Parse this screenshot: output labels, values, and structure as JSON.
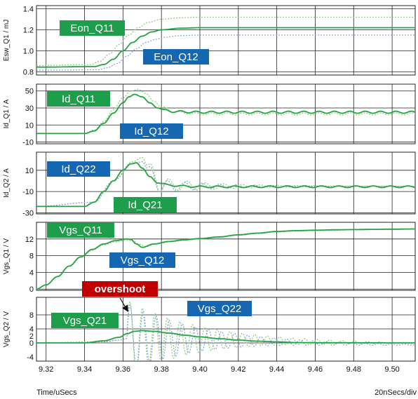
{
  "chart_data": {
    "type": "line",
    "xlabel": "Time/uSecs",
    "x_div_label": "20nSecs/div",
    "xlim": [
      9.315,
      9.512
    ],
    "x_ticks": [
      9.32,
      9.34,
      9.36,
      9.38,
      9.4,
      9.42,
      9.44,
      9.46,
      9.48,
      9.5
    ],
    "x_tick_labels": [
      "9.32",
      "9.34",
      "9.36",
      "9.38",
      "9.40",
      "9.42",
      "9.44",
      "9.46",
      "9.48",
      "9.50"
    ],
    "colors": {
      "q_solid": "#27a243",
      "q_dotted": "#8ecf7e",
      "q_blue": "#8aa6d8",
      "label_green": "#1e9e4a",
      "label_blue": "#1667b1",
      "label_red": "#c00000"
    },
    "panels": [
      {
        "ylabel": "Esw_Q1 / mJ",
        "ylim": [
          0.77,
          1.43
        ],
        "y_ticks": [
          0.8,
          1.0,
          1.2,
          1.4
        ],
        "y_tick_labels": [
          "0.8",
          "1.0",
          "1.2",
          "1.4"
        ],
        "series": [
          {
            "name": "Eon_Q11",
            "style": "solid",
            "color": "#27a243",
            "x": [
              9.315,
              9.345,
              9.35,
              9.355,
              9.36,
              9.365,
              9.37,
              9.375,
              9.38,
              9.39,
              9.4,
              9.512
            ],
            "y": [
              0.845,
              0.85,
              0.87,
              0.92,
              1.0,
              1.08,
              1.14,
              1.18,
              1.2,
              1.215,
              1.22,
              1.22
            ]
          },
          {
            "name": "",
            "style": "dotted",
            "color": "#8ecf7e",
            "x": [
              9.315,
              9.343,
              9.348,
              9.353,
              9.358,
              9.363,
              9.368,
              9.373,
              9.38,
              9.39,
              9.4,
              9.512
            ],
            "y": [
              0.86,
              0.87,
              0.9,
              0.97,
              1.06,
              1.15,
              1.22,
              1.27,
              1.3,
              1.315,
              1.32,
              1.32
            ]
          },
          {
            "name": "Eon_Q12",
            "style": "dotted",
            "color": "#8aa6d8",
            "x": [
              9.315,
              9.347,
              9.352,
              9.357,
              9.362,
              9.367,
              9.372,
              9.377,
              9.382,
              9.39,
              9.4,
              9.512
            ],
            "y": [
              0.815,
              0.82,
              0.84,
              0.88,
              0.95,
              1.02,
              1.08,
              1.11,
              1.13,
              1.145,
              1.15,
              1.15
            ]
          }
        ],
        "labels": [
          {
            "text": "Eon_Q11",
            "kind": "green"
          },
          {
            "text": "Eon_Q12",
            "kind": "blue"
          }
        ]
      },
      {
        "ylabel": "Id_Q1 / A",
        "ylim": [
          -12,
          58
        ],
        "y_ticks": [
          -10,
          10,
          30,
          50
        ],
        "y_tick_labels": [
          "-10",
          "10",
          "30",
          "50"
        ],
        "series": [
          {
            "name": "Id_Q11",
            "style": "solid",
            "color": "#27a243",
            "x": [
              9.315,
              9.34,
              9.345,
              9.35,
              9.355,
              9.36,
              9.363,
              9.366,
              9.37,
              9.374,
              9.378,
              9.382,
              9.386,
              9.392,
              9.4,
              9.512
            ],
            "y": [
              0,
              0,
              3,
              12,
              24,
              36,
              43,
              46,
              43,
              36,
              30,
              27,
              26,
              25.5,
              25,
              25
            ],
            "ripple_after": 9.38,
            "ripple_amp": 1.2,
            "ripple_period": 0.008
          },
          {
            "name": "Id_Q12",
            "style": "dotted",
            "color": "#8ecf7e",
            "x": [
              9.315,
              9.34,
              9.345,
              9.35,
              9.355,
              9.36,
              9.364,
              9.368,
              9.372,
              9.376,
              9.38,
              9.386,
              9.392,
              9.4,
              9.512
            ],
            "y": [
              0,
              0,
              4,
              14,
              28,
              42,
              50,
              52,
              47,
              38,
              31,
              26,
              24,
              23,
              23
            ],
            "ripple_after": 9.38,
            "ripple_amp": 1.2,
            "ripple_period": 0.008
          }
        ],
        "labels": [
          {
            "text": "Id_Q11",
            "kind": "green"
          },
          {
            "text": "Id_Q12",
            "kind": "blue"
          }
        ]
      },
      {
        "ylabel": "Id_Q2 / A",
        "ylim": [
          -31,
          27
        ],
        "y_ticks": [
          -30,
          -10,
          10
        ],
        "y_tick_labels": [
          "-30",
          "-10",
          "10"
        ],
        "series": [
          {
            "name": "Id_Q21",
            "style": "solid",
            "color": "#27a243",
            "x": [
              9.315,
              9.34,
              9.345,
              9.35,
              9.355,
              9.36,
              9.364,
              9.367,
              9.37,
              9.374,
              9.378,
              9.384,
              9.392,
              9.4,
              9.512
            ],
            "y": [
              -24,
              -24,
              -20,
              -10,
              0,
              10,
              16,
              17,
              12,
              4,
              -2,
              -4,
              -5,
              -5.5,
              -5.5
            ],
            "ripple_after": 9.38,
            "ripple_amp": 0.8,
            "ripple_period": 0.009
          },
          {
            "name": "",
            "style": "dotted",
            "color": "#8ecf7e",
            "x": [
              9.315,
              9.345,
              9.355,
              9.365,
              9.37,
              9.374,
              9.38,
              9.4,
              9.512
            ],
            "y": [
              -24,
              -20,
              0,
              18,
              22,
              8,
              -4,
              -5,
              -5
            ],
            "osc_after": 9.372,
            "osc_amp": 9,
            "osc_decay": 0.03,
            "osc_period": 0.0095
          },
          {
            "name": "Id_Q22",
            "style": "dotted",
            "color": "#8aa6d8",
            "x": [
              9.315,
              9.345,
              9.355,
              9.365,
              9.37,
              9.374,
              9.38,
              9.4,
              9.512
            ],
            "y": [
              -24,
              -20,
              0,
              16,
              18,
              6,
              -5,
              -5,
              -5
            ],
            "osc_after": 9.372,
            "osc_amp": 8,
            "osc_decay": 0.028,
            "osc_period": 0.009
          }
        ],
        "labels": [
          {
            "text": "Id_Q22",
            "kind": "blue"
          },
          {
            "text": "Id_Q21",
            "kind": "green"
          }
        ]
      },
      {
        "ylabel": "Vgs_Q1 / V",
        "ylim": [
          -0.3,
          16
        ],
        "y_ticks": [
          0,
          4,
          8,
          12
        ],
        "y_tick_labels": [
          "0",
          "4",
          "8",
          "12"
        ],
        "series": [
          {
            "name": "Vgs_Q11",
            "style": "solid",
            "color": "#27a243",
            "x": [
              9.315,
              9.32,
              9.326,
              9.332,
              9.338,
              9.344,
              9.35,
              9.356,
              9.362,
              9.364,
              9.367,
              9.37,
              9.376,
              9.384,
              9.392,
              9.4,
              9.41,
              9.42,
              9.43,
              9.44,
              9.45,
              9.46,
              9.47,
              9.48,
              9.49,
              9.5,
              9.512
            ],
            "y": [
              0,
              1,
              3,
              5.5,
              7.7,
              9.5,
              10.8,
              11.6,
              12,
              11.9,
              10.8,
              10,
              10.8,
              11.4,
              11.8,
              12.1,
              12.5,
              13,
              13.4,
              13.8,
              14,
              14.1,
              14.2,
              14.25,
              14.3,
              14.35,
              14.4
            ]
          },
          {
            "name": "Vgs_Q12",
            "style": "dotted",
            "color": "#8ecf7e",
            "x": [
              9.315,
              9.32,
              9.326,
              9.332,
              9.338,
              9.344,
              9.35,
              9.356,
              9.362,
              9.365,
              9.368,
              9.372,
              9.378,
              9.386,
              9.394,
              9.4,
              9.41,
              9.42,
              9.43,
              9.44,
              9.45,
              9.46,
              9.47,
              9.48,
              9.49,
              9.5,
              9.512
            ],
            "y": [
              0,
              1,
              3,
              5.4,
              7.6,
              9.3,
              10.6,
              11.3,
              11.7,
              11.6,
              10.8,
              10.2,
              10.9,
              11.4,
              11.8,
              12,
              12.4,
              12.9,
              13.3,
              13.7,
              13.9,
              14,
              14.1,
              14.2,
              14.25,
              14.3,
              14.35
            ]
          }
        ],
        "labels": [
          {
            "text": "Vgs_Q11",
            "kind": "green"
          },
          {
            "text": "Vgs_Q12",
            "kind": "blue"
          }
        ]
      },
      {
        "ylabel": "Vgs_Q2 / V",
        "ylim": [
          -5.2,
          13
        ],
        "y_ticks": [
          0,
          4,
          8
        ],
        "y_tick_labels": [
          "0",
          "4",
          "8"
        ],
        "extra_tick_labels": [
          {
            "value": 2,
            "label": "2"
          },
          {
            "value": -4,
            "label": "-4"
          }
        ],
        "series": [
          {
            "name": "Vgs_Q21",
            "style": "solid",
            "color": "#27a243",
            "x": [
              9.315,
              9.34,
              9.35,
              9.358,
              9.362,
              9.366,
              9.37,
              9.376,
              9.384,
              9.392,
              9.4,
              9.41,
              9.42,
              9.43,
              9.44,
              9.45,
              9.46,
              9.512
            ],
            "y": [
              0,
              0,
              0.6,
              1.6,
              2.6,
              3.3,
              3.5,
              3.3,
              2.8,
              2.2,
              1.7,
              1.2,
              0.8,
              0.5,
              0.3,
              0.1,
              0.05,
              0
            ]
          },
          {
            "name": "",
            "style": "dotted",
            "color": "#8ecf7e",
            "x": [
              9.315,
              9.35,
              9.358,
              9.362,
              9.512
            ],
            "y": [
              0,
              0.3,
              0.8,
              1.2,
              0
            ],
            "osc_after": 9.362,
            "osc_amp": 11,
            "osc_decay": 0.035,
            "osc_period": 0.0065
          },
          {
            "name": "Vgs_Q22",
            "style": "dotted",
            "color": "#8aa6d8",
            "x": [
              9.315,
              9.35,
              9.358,
              9.362,
              9.512
            ],
            "y": [
              0,
              0.3,
              0.8,
              1.2,
              -0.5
            ],
            "osc_after": 9.362,
            "osc_amp": 10,
            "osc_decay": 0.035,
            "osc_period": 0.0068
          }
        ],
        "labels": [
          {
            "text": "overshoot",
            "kind": "red"
          },
          {
            "text": "Vgs_Q22",
            "kind": "blue"
          },
          {
            "text": "Vgs_Q21",
            "kind": "green"
          }
        ]
      }
    ]
  }
}
